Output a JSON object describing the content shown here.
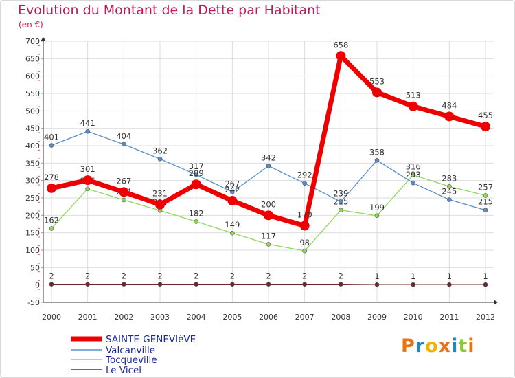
{
  "chart_data": {
    "type": "line",
    "title": "Evolution du Montant de la Dette par Habitant",
    "subtitle": "(en €)",
    "x": [
      "2000",
      "2001",
      "2002",
      "2003",
      "2004",
      "2005",
      "2006",
      "2007",
      "2008",
      "2009",
      "2010",
      "2011",
      "2012"
    ],
    "ylim": [
      -50,
      700
    ],
    "yticks": [
      -50,
      0,
      50,
      100,
      150,
      200,
      250,
      300,
      350,
      400,
      450,
      500,
      550,
      600,
      650,
      700
    ],
    "grid": true,
    "legend_position": "bottom-left",
    "series": [
      {
        "name": "SAINTE-GENEVIèVE",
        "color": "#ee0000",
        "values": [
          278,
          301,
          267,
          231,
          289,
          242,
          200,
          170,
          658,
          553,
          513,
          484,
          455
        ]
      },
      {
        "name": "Valcanville",
        "color": "#5b8ec9",
        "values": [
          401,
          441,
          404,
          362,
          317,
          267,
          342,
          292,
          239,
          358,
          293,
          245,
          215
        ]
      },
      {
        "name": "Tocqueville",
        "color": "#8fd65a",
        "values": [
          162,
          276,
          244,
          214,
          182,
          149,
          117,
          98,
          215,
          199,
          316,
          283,
          257
        ]
      },
      {
        "name": "Le Vicel",
        "color": "#6b2a2a",
        "values": [
          2,
          2,
          2,
          2,
          2,
          2,
          2,
          2,
          2,
          1,
          1,
          1,
          1
        ]
      }
    ]
  },
  "logo": {
    "text": "Proxiti"
  }
}
